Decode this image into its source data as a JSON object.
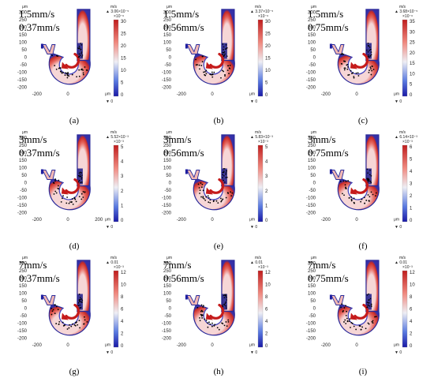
{
  "figure": {
    "x_ticks": [
      "-200",
      "0",
      "200"
    ],
    "y_ticks": [
      "300",
      "250",
      "200",
      "150",
      "100",
      "50",
      "0",
      "-50",
      "-100",
      "-150",
      "-200"
    ],
    "axis_unit": "μm",
    "panels": [
      {
        "label": "(a)",
        "flow": "1.5mm/s",
        "speed": "0.37mm/s",
        "unit": "m/s",
        "max_label": "▲ 3.06×10⁻⁵",
        "exp_label": "×10⁻⁶",
        "min_label": "▼ 0",
        "cbar_ticks": [
          "30",
          "25",
          "20",
          "15",
          "10",
          "5",
          "0"
        ],
        "show_x200": false
      },
      {
        "label": "(b)",
        "flow": "1.5mm/s",
        "speed": "0.56mm/s",
        "unit": "m/s",
        "max_label": "▲ 3.37×10⁻⁵",
        "exp_label": "×10⁻⁶",
        "min_label": "▼ 0",
        "cbar_ticks": [
          "30",
          "25",
          "20",
          "15",
          "10",
          "5",
          "0"
        ],
        "show_x200": false
      },
      {
        "label": "(c)",
        "flow": "1.5mm/s",
        "speed": "0.75mm/s",
        "unit": "m/s",
        "max_label": "▲ 3.68×10⁻⁵",
        "exp_label": "×10⁻⁶",
        "min_label": "▼ 0",
        "cbar_ticks": [
          "35",
          "30",
          "25",
          "20",
          "15",
          "10",
          "5",
          "0"
        ],
        "show_x200": false
      },
      {
        "label": "(d)",
        "flow": "3mm/s",
        "speed": "0.37mm/s",
        "unit": "m/s",
        "max_label": "▲ 5.52×10⁻³",
        "exp_label": "×10⁻³",
        "min_label": "▼ 0",
        "cbar_ticks": [
          "5",
          "4",
          "3",
          "2",
          "1",
          "0"
        ],
        "show_x200": true
      },
      {
        "label": "(e)",
        "flow": "3mm/s",
        "speed": "0.56mm/s",
        "unit": "m/s",
        "max_label": "▲ 5.83×10⁻³",
        "exp_label": "×10⁻³",
        "min_label": "▼ 0",
        "cbar_ticks": [
          "5",
          "4",
          "3",
          "2",
          "1",
          "0"
        ],
        "show_x200": false
      },
      {
        "label": "(f)",
        "flow": "3mm/s",
        "speed": "0.75mm/s",
        "unit": "m/s",
        "max_label": "▲ 6.14×10⁻³",
        "exp_label": "×10⁻³",
        "min_label": "▼ 0",
        "cbar_ticks": [
          "6",
          "5",
          "4",
          "3",
          "2",
          "1",
          "0"
        ],
        "show_x200": false
      },
      {
        "label": "(g)",
        "flow": "7mm/s",
        "speed": "0.37mm/s",
        "unit": "m/s",
        "max_label": "▲ 0.01",
        "exp_label": "×10⁻³",
        "min_label": "▼ 0",
        "cbar_ticks": [
          "12",
          "10",
          "8",
          "6",
          "4",
          "2",
          "0"
        ],
        "show_x200": false
      },
      {
        "label": "(h)",
        "flow": "7mm/s",
        "speed": "0.56mm/s",
        "unit": "m/s",
        "max_label": "▲ 0.01",
        "exp_label": "×10⁻³",
        "min_label": "▼ 0",
        "cbar_ticks": [
          "12",
          "10",
          "8",
          "6",
          "4",
          "2",
          "0"
        ],
        "show_x200": false
      },
      {
        "label": "(i)",
        "flow": "7mm/s",
        "speed": "0.75mm/s",
        "unit": "m/s",
        "max_label": "▲ 0.01",
        "exp_label": "×10⁻³",
        "min_label": "▼ 0",
        "cbar_ticks": [
          "12",
          "10",
          "8",
          "6",
          "4",
          "2",
          "0"
        ],
        "show_x200": false
      }
    ]
  }
}
